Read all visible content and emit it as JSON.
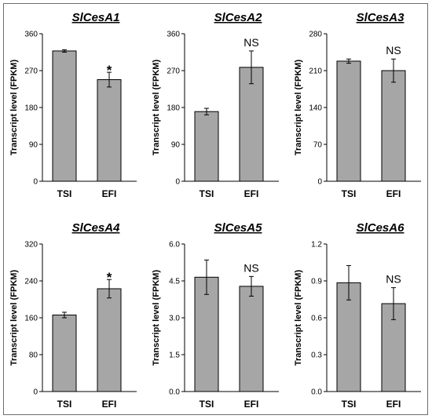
{
  "chart_data": [
    {
      "type": "bar",
      "title": "SlCesA1",
      "ylabel": "Transcript level (FPKM)",
      "categories": [
        "TSI",
        "EFI"
      ],
      "values": [
        318,
        248
      ],
      "errors": [
        3,
        18
      ],
      "ylim": [
        0,
        360
      ],
      "yticks": [
        "0",
        "90",
        "180",
        "270",
        "360"
      ],
      "annotation": "*"
    },
    {
      "type": "bar",
      "title": "SlCesA2",
      "ylabel": "Transcript level (FPKM)",
      "categories": [
        "TSI",
        "EFI"
      ],
      "values": [
        170,
        278
      ],
      "errors": [
        8,
        40
      ],
      "ylim": [
        0,
        360
      ],
      "yticks": [
        "0",
        "90",
        "180",
        "270",
        "360"
      ],
      "annotation": "NS"
    },
    {
      "type": "bar",
      "title": "SlCesA3",
      "ylabel": "Transcript level (FPKM)",
      "categories": [
        "TSI",
        "EFI"
      ],
      "values": [
        228,
        210
      ],
      "errors": [
        4,
        22
      ],
      "ylim": [
        0,
        280
      ],
      "yticks": [
        "0",
        "70",
        "140",
        "210",
        "280"
      ],
      "annotation": "NS"
    },
    {
      "type": "bar",
      "title": "SlCesA4",
      "ylabel": "Transcript level (FPKM)",
      "categories": [
        "TSI",
        "EFI"
      ],
      "values": [
        166,
        223
      ],
      "errors": [
        6,
        20
      ],
      "ylim": [
        0,
        320
      ],
      "yticks": [
        "0",
        "80",
        "160",
        "240",
        "320"
      ],
      "annotation": "*"
    },
    {
      "type": "bar",
      "title": "SlCesA5",
      "ylabel": "Transcript level (FPKM)",
      "categories": [
        "TSI",
        "EFI"
      ],
      "values": [
        4.65,
        4.28
      ],
      "errors": [
        0.7,
        0.4
      ],
      "ylim": [
        0,
        6.0
      ],
      "yticks": [
        "0.0",
        "1.5",
        "3.0",
        "4.5",
        "6.0"
      ],
      "annotation": "NS"
    },
    {
      "type": "bar",
      "title": "SlCesA6",
      "ylabel": "Transcript level (FPKM)",
      "categories": [
        "TSI",
        "EFI"
      ],
      "values": [
        0.885,
        0.715
      ],
      "errors": [
        0.14,
        0.13
      ],
      "ylim": [
        0,
        1.2
      ],
      "yticks": [
        "0.0",
        "0.3",
        "0.6",
        "0.9",
        "1.2"
      ],
      "annotation": "NS"
    }
  ],
  "colors": {
    "bar_fill": "#a6a6a6",
    "bar_stroke": "#000000",
    "axis": "#000000",
    "frame": "#6e6e6e"
  }
}
